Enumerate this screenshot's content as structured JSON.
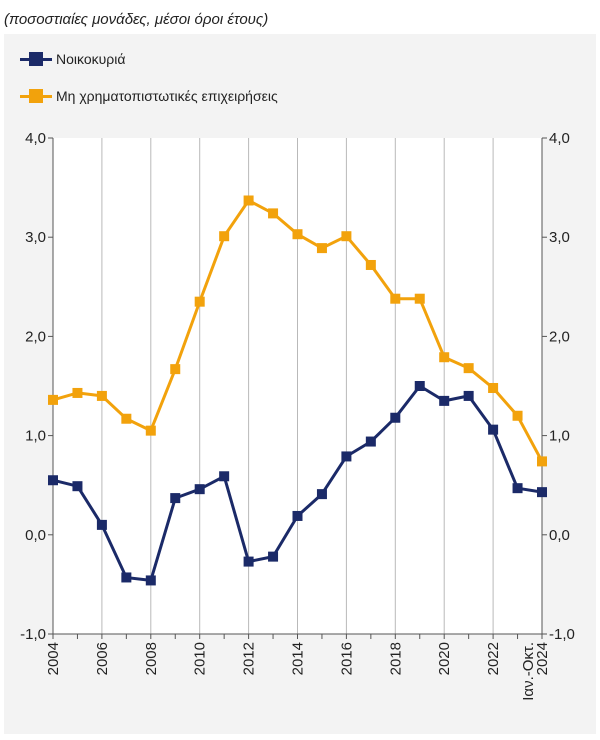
{
  "chart_data": {
    "type": "line",
    "subtitle": "(ποσοστιαίες μονάδες, μέσοι όροι έτους)",
    "x": [
      "2004",
      "2005",
      "2006",
      "2007",
      "2008",
      "2009",
      "2010",
      "2011",
      "2012",
      "2013",
      "2014",
      "2015",
      "2016",
      "2017",
      "2018",
      "2019",
      "2020",
      "2021",
      "2022",
      "2023",
      "2024 Ιαν.-Οκτ."
    ],
    "x_tick_labels": [
      "2004",
      "2006",
      "2008",
      "2010",
      "2012",
      "2014",
      "2016",
      "2018",
      "2020",
      "2022",
      "2024",
      "Ιαν.-Οκτ."
    ],
    "y_tick_labels": [
      "4,0",
      "3,0",
      "2,0",
      "1,0",
      "0,0",
      "-1,0"
    ],
    "ylim": [
      -1.0,
      4.0
    ],
    "y_ticks": [
      4.0,
      3.0,
      2.0,
      1.0,
      0.0,
      -1.0
    ],
    "grid": "vertical",
    "legend_position": "top-left",
    "series": [
      {
        "name": "Νοικοκυριά",
        "color": "#1b2a68",
        "values": [
          0.55,
          0.49,
          0.1,
          -0.43,
          -0.46,
          0.37,
          0.46,
          0.59,
          -0.27,
          -0.22,
          0.19,
          0.41,
          0.79,
          0.94,
          1.18,
          1.5,
          1.35,
          1.4,
          1.06,
          0.47,
          0.43
        ]
      },
      {
        "name": "Μη χρηματοπιστωτικές επιχειρήσεις",
        "color": "#f2a20c",
        "values": [
          1.36,
          1.43,
          1.4,
          1.17,
          1.05,
          1.67,
          2.35,
          3.01,
          3.37,
          3.24,
          3.03,
          2.89,
          3.01,
          2.72,
          2.38,
          2.38,
          1.79,
          1.68,
          1.48,
          1.2,
          0.74
        ]
      }
    ]
  }
}
